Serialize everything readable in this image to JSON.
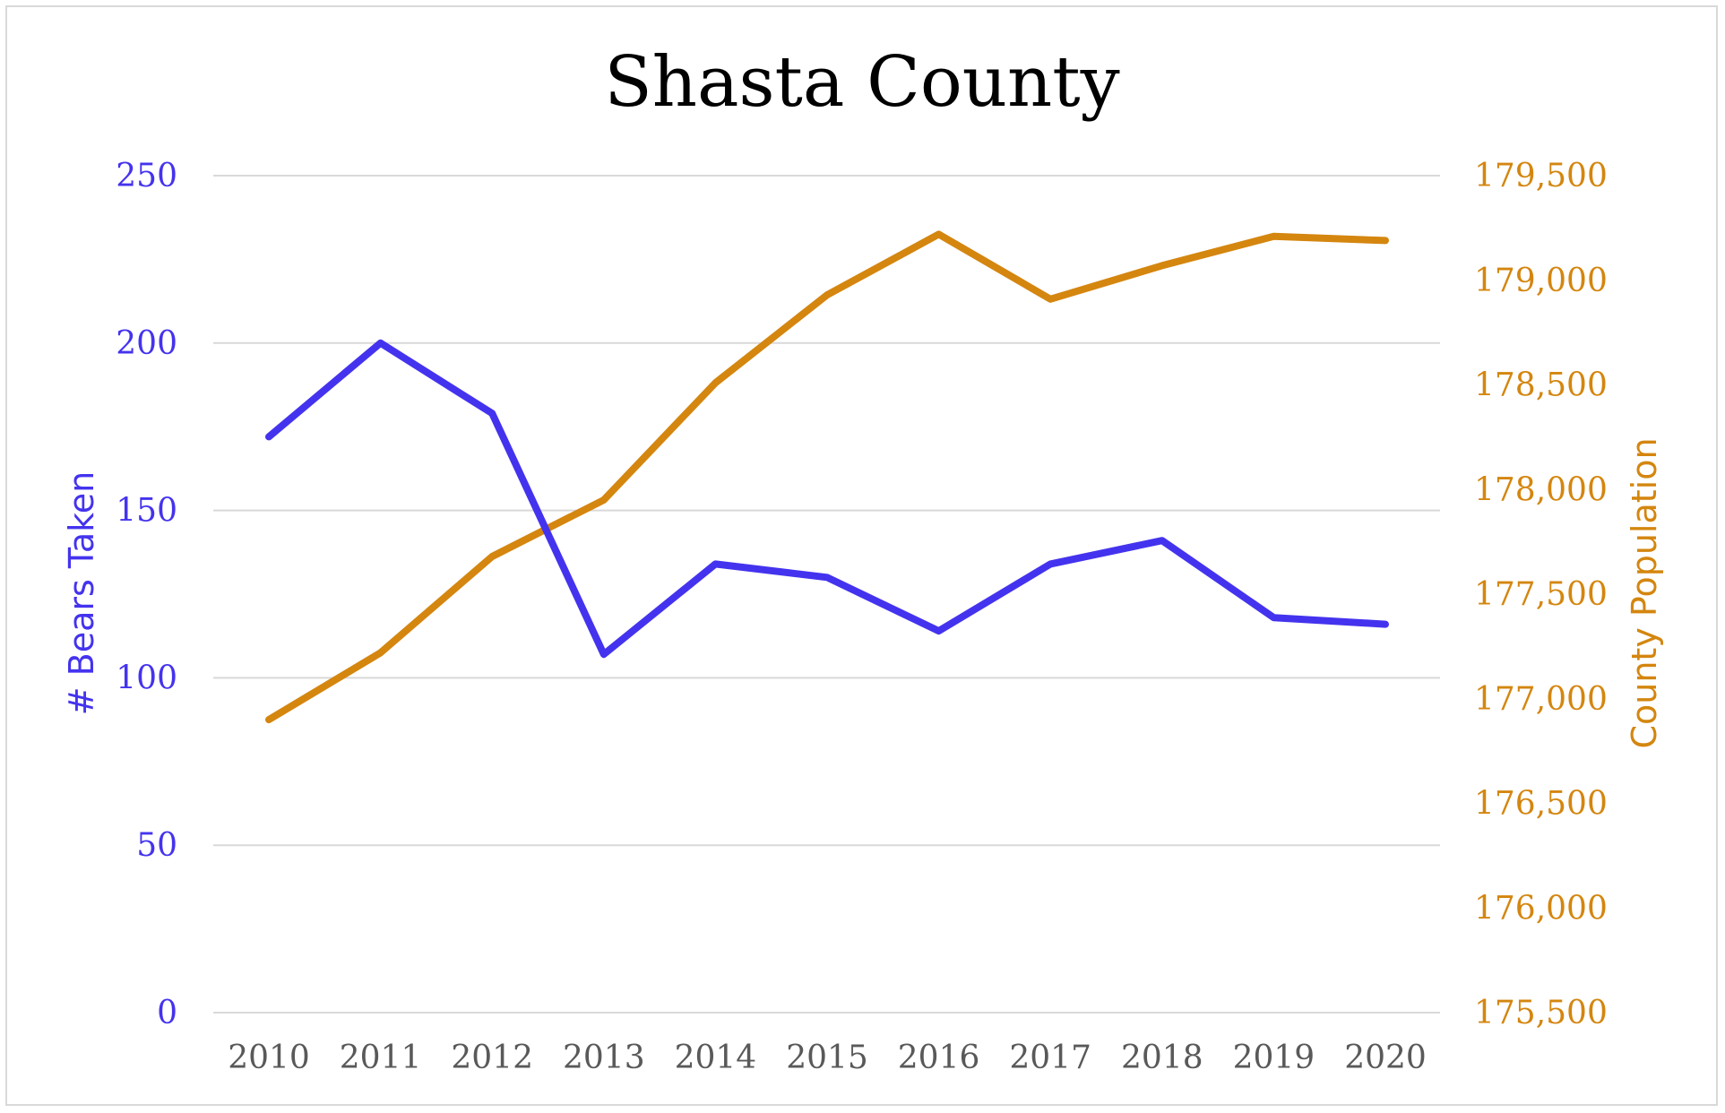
{
  "chart_data": {
    "type": "line",
    "title": "Shasta County",
    "categories": [
      "2010",
      "2011",
      "2012",
      "2013",
      "2014",
      "2015",
      "2016",
      "2017",
      "2018",
      "2019",
      "2020"
    ],
    "series": [
      {
        "name": "# Bears Taken",
        "axis": "left",
        "color": "#4433ee",
        "values": [
          172,
          200,
          179,
          107,
          134,
          130,
          114,
          134,
          141,
          118,
          116
        ]
      },
      {
        "name": "County Population",
        "axis": "right",
        "color": "#d4860f",
        "values": [
          176900,
          177220,
          177680,
          177950,
          178510,
          178930,
          179220,
          178910,
          179070,
          179210,
          179190
        ]
      }
    ],
    "y_left": {
      "label": "# Bears Taken",
      "ylim": [
        0,
        250
      ],
      "ticks": [
        0,
        50,
        100,
        150,
        200,
        250
      ],
      "tick_labels": [
        "0",
        "50",
        "100",
        "150",
        "200",
        "250"
      ],
      "color": "#4433ee"
    },
    "y_right": {
      "label": "County Population",
      "ylim": [
        175500,
        179500
      ],
      "ticks": [
        175500,
        176000,
        176500,
        177000,
        177500,
        178000,
        178500,
        179000,
        179500
      ],
      "tick_labels": [
        "175,500",
        "176,000",
        "176,500",
        "177,000",
        "177,500",
        "178,000",
        "178,500",
        "179,000",
        "179,500"
      ],
      "color": "#d4860f"
    },
    "grid": true,
    "grid_color": "#d9d9d9",
    "legend": "none"
  }
}
